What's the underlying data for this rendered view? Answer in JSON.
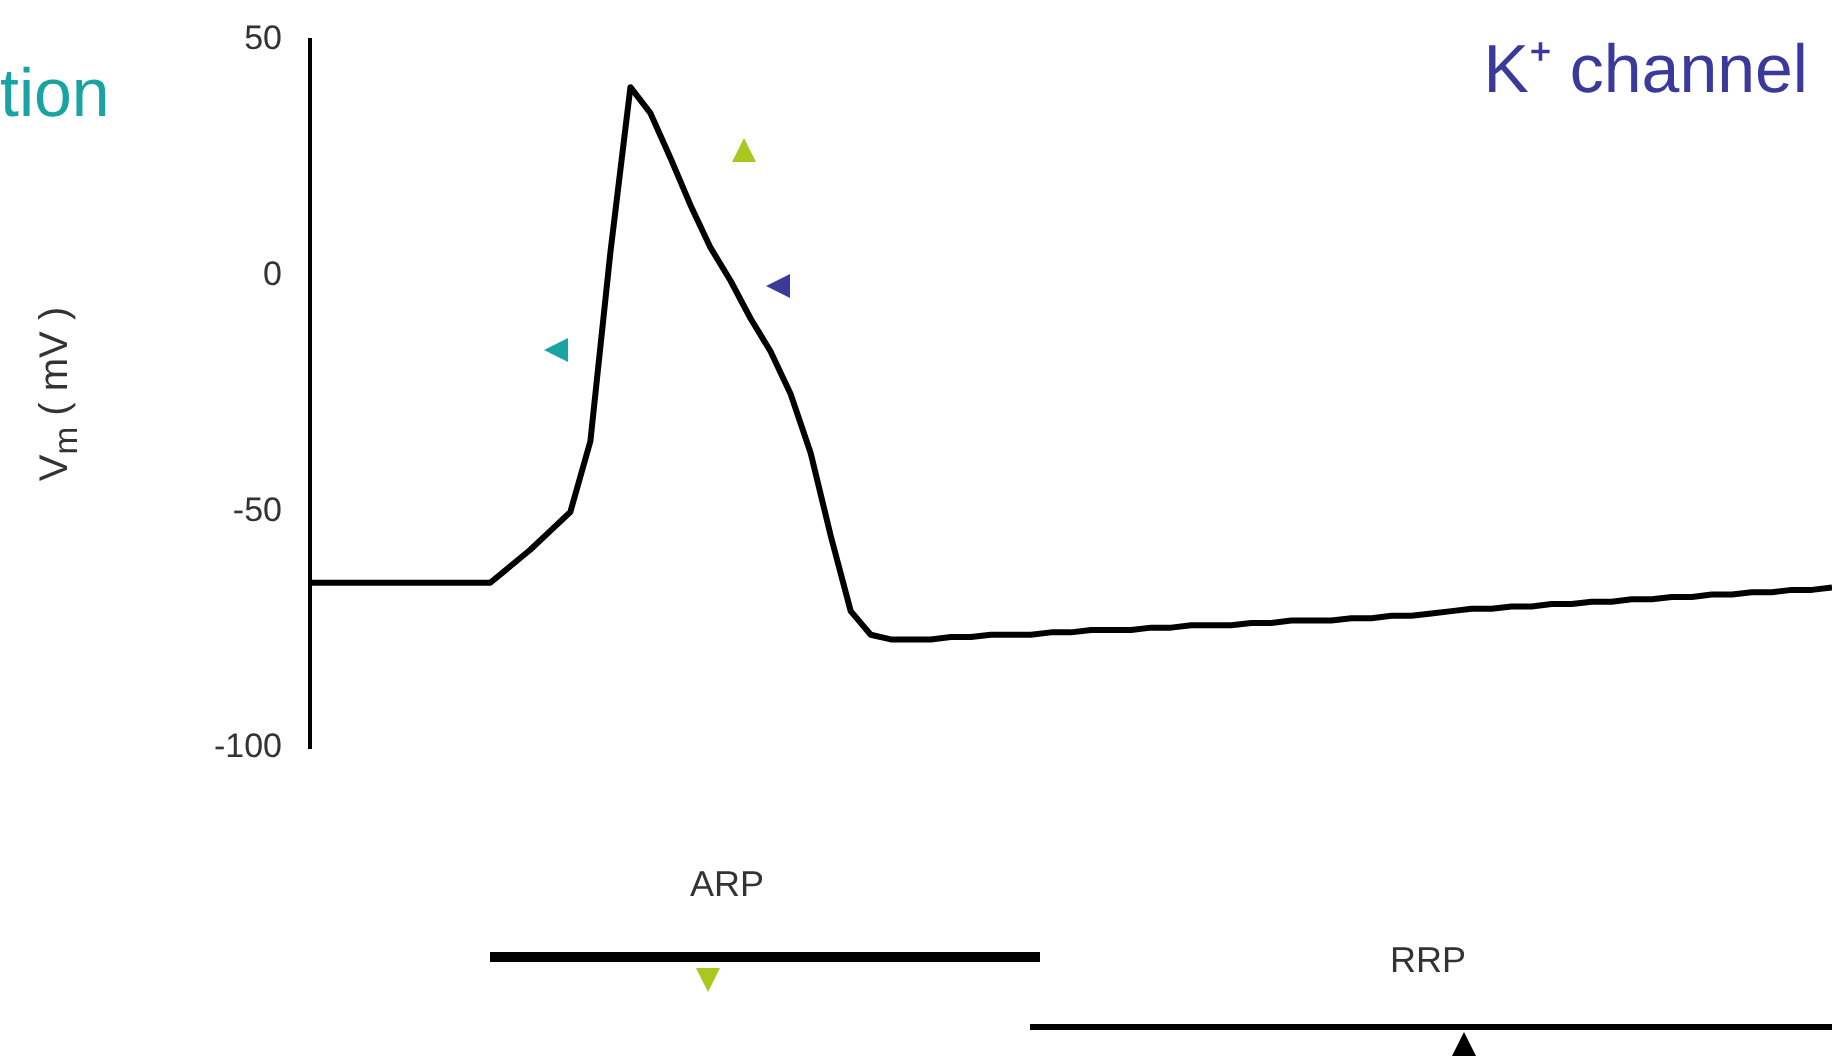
{
  "chart_data": {
    "type": "line",
    "ylabel": "V$_{m}$ ( mV )",
    "annotations": [
      "tion",
      "K⁺ channel",
      "ARP",
      "RRP"
    ],
    "categories": [
      null,
      null,
      null,
      null,
      null,
      null,
      null,
      null,
      null,
      null,
      null,
      null,
      null,
      null,
      null,
      null,
      null,
      null,
      null,
      null,
      null,
      null,
      null,
      null,
      null,
      null,
      null,
      null,
      null,
      null,
      null,
      null,
      null,
      null,
      null,
      null,
      null,
      null,
      null,
      null,
      null,
      null,
      null,
      null,
      null,
      null,
      null,
      null,
      null,
      null,
      null,
      null,
      null,
      null,
      null,
      null,
      null,
      null,
      null,
      null,
      null,
      null,
      null,
      null,
      null,
      null,
      null,
      null,
      null,
      null,
      null,
      null,
      null,
      null,
      null,
      null,
      null
    ],
    "series": [
      {
        "color": "#000000",
        "values": [
          -65,
          -65,
          -65,
          -65,
          -65,
          -65,
          -65,
          -65,
          -65,
          -65,
          -61.5,
          -58,
          -54,
          -50,
          -35,
          5,
          40,
          34.5,
          25,
          15,
          6,
          -1,
          -9,
          -16,
          -25,
          -37.5,
          -55,
          -71,
          -76,
          -77,
          -77,
          -77,
          -76.5,
          -76.5,
          -76,
          -76,
          -76,
          -75.5,
          -75.5,
          -75,
          -75,
          -75,
          -74.5,
          -74.5,
          -74,
          -74,
          -74,
          -73.5,
          -73.5,
          -73,
          -73,
          -73,
          -72.5,
          -72.5,
          -72,
          -72,
          -71.5,
          -71,
          -70.5,
          -70.5,
          -70,
          -70,
          -69.5,
          -69.5,
          -69,
          -69,
          -68.5,
          -68.5,
          -68,
          -68,
          -67.5,
          -67.5,
          -67,
          -67,
          -66.5,
          -66.5,
          -66
        ]
      }
    ],
    "ylim": [
      -100,
      50
    ],
    "yticks": [
      -100,
      -50,
      0,
      50
    ],
    "tick_labels": "y",
    "grid": false,
    "legend": false,
    "marker": "none",
    "line_style": "solid"
  }
}
